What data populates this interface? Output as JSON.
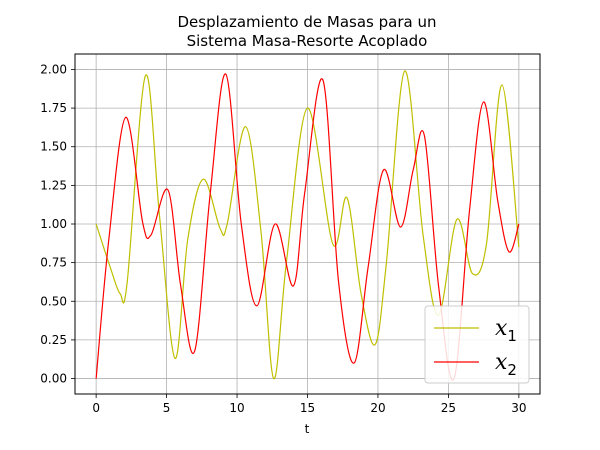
{
  "chart_data": {
    "type": "line",
    "title_lines": [
      "Desplazamiento de Masas para un",
      "Sistema Masa-Resorte Acoplado"
    ],
    "xlabel": "t",
    "ylabel": "",
    "xlim": [
      -1.5,
      31.5
    ],
    "ylim": [
      -0.1,
      2.1
    ],
    "xticks": [
      0,
      5,
      10,
      15,
      20,
      25,
      30
    ],
    "yticks": [
      0.0,
      0.25,
      0.5,
      0.75,
      1.0,
      1.25,
      1.5,
      1.75,
      2.0
    ],
    "ytick_labels": [
      "0.00",
      "0.25",
      "0.50",
      "0.75",
      "1.00",
      "1.25",
      "1.50",
      "1.75",
      "2.00"
    ],
    "grid": true,
    "legend_position": "lower-right",
    "series": [
      {
        "name": "x",
        "subscript": "1",
        "color": "#bfbf00",
        "x": [
          0,
          1.0,
          1.7,
          2.2,
          3.5,
          4.5,
          5.6,
          6.5,
          7.6,
          8.8,
          9.3,
          10.6,
          11.7,
          12.6,
          13.5,
          15.0,
          16.8,
          17.8,
          18.8,
          19.8,
          20.6,
          21.9,
          23.2,
          24.3,
          25.6,
          26.7,
          27.7,
          28.8,
          30.0
        ],
        "y": [
          1.0,
          0.72,
          0.55,
          0.62,
          1.96,
          1.05,
          0.13,
          0.9,
          1.29,
          0.97,
          1.0,
          1.63,
          0.95,
          0.0,
          0.75,
          1.75,
          0.87,
          1.17,
          0.55,
          0.22,
          0.75,
          1.99,
          0.93,
          0.41,
          1.03,
          0.68,
          0.87,
          1.9,
          0.85
        ]
      },
      {
        "name": "x",
        "subscript": "2",
        "color": "#ff0000",
        "x": [
          0,
          0.9,
          2.1,
          3.3,
          3.9,
          5.1,
          6.0,
          7.0,
          8.1,
          9.2,
          10.3,
          11.4,
          12.7,
          14.0,
          14.8,
          16.1,
          17.2,
          18.3,
          19.3,
          20.4,
          21.6,
          22.5,
          23.3,
          24.3,
          25.4,
          26.5,
          27.5,
          28.5,
          29.3,
          30.0
        ],
        "y": [
          0.0,
          0.9,
          1.69,
          1.01,
          0.93,
          1.22,
          0.6,
          0.18,
          1.2,
          1.97,
          1.0,
          0.47,
          1.0,
          0.6,
          1.2,
          1.93,
          0.63,
          0.1,
          0.72,
          1.35,
          0.98,
          1.35,
          1.57,
          0.6,
          0.0,
          1.09,
          1.79,
          1.15,
          0.82,
          1.0
        ]
      }
    ]
  }
}
